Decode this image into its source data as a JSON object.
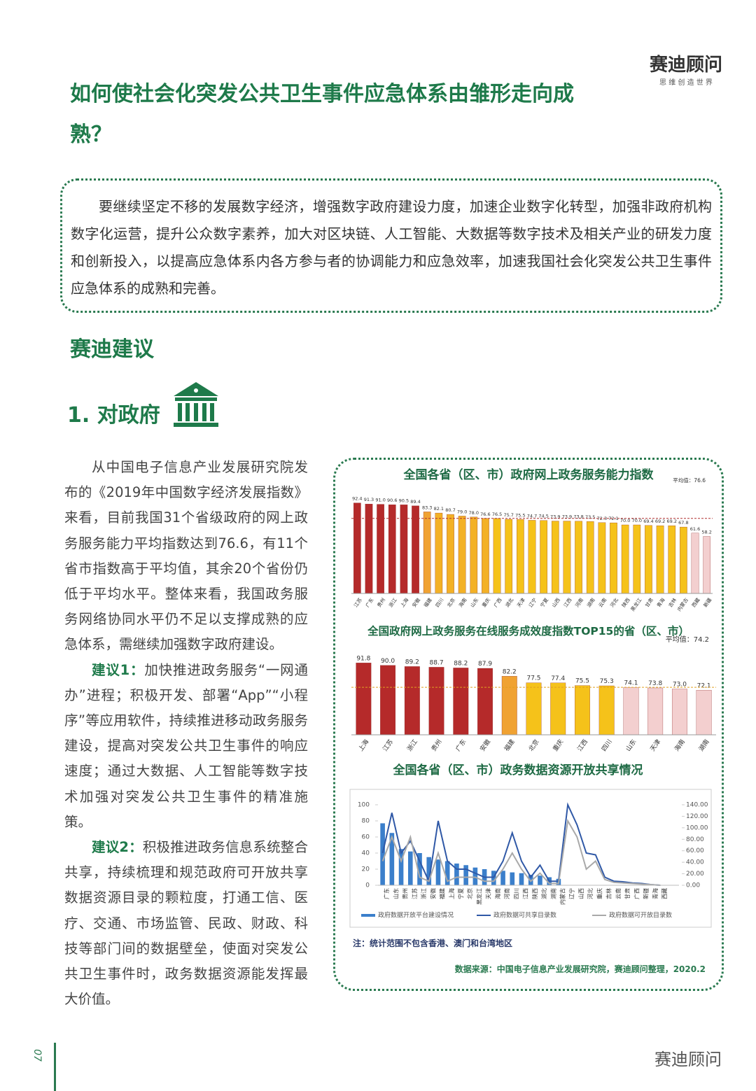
{
  "header": {
    "brand": "赛迪顾问",
    "slogan": "思 维 创 造 世 界",
    "title": "如何使社会化突发公共卫生事件应急体系由雏形走向成熟？"
  },
  "intro": "要继续坚定不移的发展数字经济，增强数字政府建设力度，加速企业数字化转型，加强非政府机构数字化运营，提升公众数字素养，加大对区块链、人工智能、大数据等数字技术及相关产业的研发力度和创新投入，以提高应急体系内各方参与者的协调能力和应急效率，加速我国社会化突发公共卫生事件应急体系的成熟和完善。",
  "section": "赛迪建议",
  "subsection": "1. 对政府",
  "body": [
    {
      "text": "从中国电子信息产业发展研究院发布的《2019年中国数字经济发展指数》来看，目前我国31个省级政府的网上政务服务能力平均指数达到76.6，有11个省市指数高于平均值，其余20个省份仍低于平均水平。整体来看，我国政务服务网络协同水平仍不足以支撑成熟的应急体系，需继续加强数字政府建设。"
    },
    {
      "label": "建议1：",
      "text": "加快推进政务服务“一网通办”进程；积极开发、部署“App”“小程序”等应用软件，持续推进移动政务服务建设，提高对突发公共卫生事件的响应速度；通过大数据、人工智能等数字技术加强对突发公共卫生事件的精准施策。"
    },
    {
      "label": "建议2：",
      "text": "积极推进政务信息系统整合共享，持续梳理和规范政府可开放共享数据资源目录的颗粒度，打通工信、医疗、交通、市场监管、民政、财政、科技等部门间的数据壁垒，使面对突发公共卫生事件时，政务数据资源能发挥最大价值。"
    }
  ],
  "chart_data": [
    {
      "type": "bar",
      "title": "全国各省（区、市）政府网上政务服务能力指数",
      "categories": [
        "江苏",
        "广东",
        "贵州",
        "浙江",
        "上海",
        "安徽",
        "福建",
        "四川",
        "北京",
        "海南",
        "山东",
        "重庆",
        "广西",
        "湖北",
        "天津",
        "辽宁",
        "宁夏",
        "山西",
        "江西",
        "河南",
        "湖南",
        "云南",
        "河北",
        "陕西",
        "黑龙江",
        "甘肃",
        "青海",
        "吉林",
        "内蒙古",
        "西藏",
        "新疆"
      ],
      "values": [
        92.4,
        91.3,
        91.0,
        90.6,
        90.5,
        89.4,
        83.3,
        82.1,
        80.7,
        79.0,
        78.0,
        76.6,
        76.5,
        75.7,
        75.5,
        74.7,
        74.5,
        73.9,
        73.9,
        73.8,
        73.5,
        72.3,
        72.1,
        70.0,
        70.0,
        69.4,
        69.2,
        69.2,
        67.8,
        61.6,
        58.2
      ],
      "value_labels": [
        "92.4",
        "91.3",
        "91.0",
        "90.6",
        "90.5",
        "89.4",
        "83.3",
        "82.1",
        "80.7",
        "79.0",
        "78.0",
        "76.6",
        "76.5",
        "75.7",
        "75.5",
        "74.7",
        "74.5",
        "73.9",
        "73.9",
        "73.8",
        "73.5",
        "72.3",
        "72.1",
        "70.0",
        "70.0",
        "69.4",
        "69.2",
        "69.2",
        "67.8",
        "61.6",
        "58.2"
      ],
      "colors": [
        "#b52a2a",
        "#b52a2a",
        "#b52a2a",
        "#b52a2a",
        "#b52a2a",
        "#b52a2a",
        "#f0a232",
        "#f3b126",
        "#f3b126",
        "#f3b126",
        "#f3b126",
        "#f3b126",
        "#f5c21a",
        "#f5c21a",
        "#f5c21a",
        "#f5c21a",
        "#f5c21a",
        "#f5c21a",
        "#f5c21a",
        "#f5c21a",
        "#f5c21a",
        "#f5c21a",
        "#f5c21a",
        "#f5c21a",
        "#f5c21a",
        "#f5c21a",
        "#f5c21a",
        "#f5c21a",
        "#f5c21a",
        "#f3cfcf",
        "#f3cfcf"
      ],
      "average": 76.6,
      "average_label": "平均值：76.6",
      "ylim": [
        0,
        100
      ]
    },
    {
      "type": "bar",
      "title": "全国政府网上政务服务在线服务成效度指数TOP15的省（区、市）",
      "categories": [
        "上海",
        "江苏",
        "浙江",
        "贵州",
        "广东",
        "安徽",
        "福建",
        "北京",
        "重庆",
        "江西",
        "四川",
        "山东",
        "天津",
        "海南",
        "湖南"
      ],
      "values": [
        91.8,
        90.0,
        89.2,
        88.7,
        88.2,
        87.9,
        82.2,
        77.5,
        77.4,
        75.5,
        75.3,
        74.1,
        73.8,
        73.0,
        72.1
      ],
      "value_labels": [
        "91.8",
        "90.0",
        "89.2",
        "88.7",
        "88.2",
        "87.9",
        "82.2",
        "77.5",
        "77.4",
        "75.5",
        "75.3",
        "74.1",
        "73.8",
        "73.0",
        "72.1"
      ],
      "colors": [
        "#b52a2a",
        "#b52a2a",
        "#b52a2a",
        "#b52a2a",
        "#b52a2a",
        "#b52a2a",
        "#f0a232",
        "#f5c21a",
        "#f5c21a",
        "#f5c21a",
        "#f5c21a",
        "#f3cfcf",
        "#f3cfcf",
        "#f3cfcf",
        "#f3cfcf"
      ],
      "average": 74.2,
      "average_label": "平均值：74.2",
      "ylim": [
        40,
        100
      ]
    },
    {
      "type": "combo",
      "title": "全国各省（区、市）政务数据资源开放共享情况",
      "categories": [
        "广东",
        "山东",
        "贵州",
        "江苏",
        "浙江",
        "安徽",
        "福建",
        "上海",
        "宁夏",
        "北京",
        "黑龙江",
        "天津",
        "海南",
        "河南",
        "四川",
        "江西",
        "陕西",
        "湖北",
        "湖南",
        "内蒙古",
        "辽宁",
        "山西",
        "河北",
        "重庆",
        "吉林",
        "云南",
        "甘肃",
        "广西",
        "新疆",
        "青海",
        "西藏"
      ],
      "series": [
        {
          "name": "政府数据开放平台建设情况",
          "color": "#3b7fcb",
          "values": [
            77,
            65,
            45,
            42,
            40,
            35,
            32,
            30,
            27,
            25,
            22,
            20,
            18,
            18,
            16,
            15,
            13,
            12,
            10,
            8,
            0,
            0,
            0,
            0,
            0,
            0,
            0,
            0,
            0,
            0,
            0
          ]
        },
        {
          "name": "政府数据可共享目录数",
          "color": "#2f58a6",
          "axis": "y2",
          "values": [
            56,
            126,
            56,
            77,
            42,
            7,
            112,
            42,
            28,
            28,
            21,
            14,
            14,
            42,
            91,
            42,
            14,
            35,
            7,
            7,
            140,
            105,
            56,
            53,
            14,
            7,
            6,
            4,
            3,
            1,
            0
          ]
        },
        {
          "name": "政府数据可开放目录数",
          "color": "#a9a9a9",
          "axis": "y2",
          "values": [
            42,
            84,
            42,
            84,
            14,
            7,
            56,
            7,
            14,
            14,
            14,
            7,
            7,
            28,
            56,
            28,
            7,
            21,
            3,
            3,
            112,
            84,
            28,
            42,
            10,
            5,
            4,
            3,
            2,
            1,
            0
          ]
        }
      ],
      "ylim": [
        0,
        100
      ],
      "yticks": [
        0,
        20,
        40,
        60,
        80,
        100
      ],
      "y2lim": [
        0,
        140
      ],
      "y2ticks": [
        {
          "value": 0,
          "label": "0.00"
        },
        {
          "value": 20,
          "label": "20.00"
        },
        {
          "value": 40,
          "label": "40.00"
        },
        {
          "value": 60,
          "label": "60.00"
        },
        {
          "value": 80,
          "label": "80.00"
        },
        {
          "value": 100,
          "label": "100.00"
        },
        {
          "value": 120,
          "label": "120.00"
        },
        {
          "value": 140,
          "label": "140.00"
        }
      ],
      "legend": "bottom"
    }
  ],
  "note": "注：统计范围不包含香港、澳门和台湾地区",
  "source": "数据来源：中国电子信息产业发展研究院，赛迪顾问整理，2020.2",
  "footer": {
    "page": "07",
    "watermark": "赛迪顾问"
  }
}
